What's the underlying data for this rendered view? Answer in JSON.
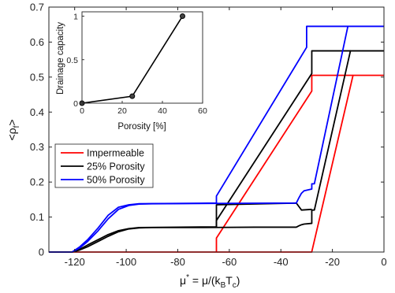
{
  "chart_data": [
    {
      "type": "line",
      "xlabel": "μ* = μ/(k_BT_c)",
      "ylabel": "<ρ_f>",
      "xlim": [
        -130,
        0
      ],
      "ylim": [
        0,
        0.7
      ],
      "x_ticks": [
        "-120",
        "-100",
        "-80",
        "-60",
        "-40",
        "-20",
        "0"
      ],
      "y_ticks": [
        "0",
        "0.1",
        "0.2",
        "0.3",
        "0.4",
        "0.5",
        "0.6",
        "0.7"
      ],
      "x_tick_values": [
        -120,
        -100,
        -80,
        -60,
        -40,
        -20,
        0
      ],
      "y_tick_values": [
        0,
        0.1,
        0.2,
        0.3,
        0.4,
        0.5,
        0.6,
        0.7
      ],
      "legend_position": "lower-left",
      "series": [
        {
          "name": "Impermeable",
          "color": "#ff0000",
          "branches": [
            [
              [
                -130,
                0
              ],
              [
                -28,
                0
              ],
              [
                -28,
                0.001
              ],
              [
                -12,
                0.505
              ],
              [
                0,
                0.505
              ]
            ],
            [
              [
                -65,
                0
              ],
              [
                -65,
                0.04
              ],
              [
                -28,
                0.46
              ],
              [
                -28,
                0.505
              ],
              [
                -12,
                0.505
              ]
            ]
          ]
        },
        {
          "name": "25% Porosity",
          "color": "#000000",
          "branches": [
            [
              [
                -130,
                0
              ],
              [
                -121,
                0
              ],
              [
                -118,
                0.006
              ],
              [
                -115,
                0.015
              ],
              [
                -111,
                0.03
              ],
              [
                -107,
                0.045
              ],
              [
                -103,
                0.058
              ],
              [
                -99,
                0.066
              ],
              [
                -95,
                0.069
              ],
              [
                -90,
                0.07
              ],
              [
                -80,
                0.07
              ],
              [
                -70,
                0.07
              ],
              [
                -50,
                0.071
              ],
              [
                -34,
                0.071
              ],
              [
                -33,
                0.075
              ],
              [
                -32,
                0.078
              ],
              [
                -31,
                0.08
              ],
              [
                -28,
                0.082
              ],
              [
                -28,
                0.12
              ],
              [
                -27,
                0.12
              ],
              [
                -13,
                0.575
              ],
              [
                0,
                0.575
              ]
            ],
            [
              [
                -121,
                0
              ],
              [
                -118,
                0.008
              ],
              [
                -115,
                0.02
              ],
              [
                -111,
                0.035
              ],
              [
                -107,
                0.05
              ],
              [
                -103,
                0.061
              ],
              [
                -99,
                0.067
              ],
              [
                -95,
                0.07
              ],
              [
                -65,
                0.072
              ],
              [
                -65,
                0.09
              ],
              [
                -28,
                0.51
              ],
              [
                -28,
                0.575
              ],
              [
                -13,
                0.575
              ]
            ],
            [
              [
                -65,
                0.072
              ],
              [
                -65,
                0.135
              ],
              [
                -34,
                0.14
              ],
              [
                -33,
                0.13
              ],
              [
                -32,
                0.12
              ],
              [
                -28,
                0.122
              ]
            ]
          ]
        },
        {
          "name": "50% Porosity",
          "color": "#0000ff",
          "branches": [
            [
              [
                -130,
                0
              ],
              [
                -121,
                0
              ],
              [
                -118,
                0.012
              ],
              [
                -115,
                0.03
              ],
              [
                -111,
                0.06
              ],
              [
                -107,
                0.095
              ],
              [
                -103,
                0.122
              ],
              [
                -99,
                0.133
              ],
              [
                -95,
                0.137
              ],
              [
                -90,
                0.138
              ],
              [
                -65,
                0.139
              ],
              [
                -34,
                0.14
              ],
              [
                -33,
                0.155
              ],
              [
                -32,
                0.168
              ],
              [
                -31,
                0.175
              ],
              [
                -28,
                0.18
              ],
              [
                -28,
                0.195
              ],
              [
                -27,
                0.195
              ],
              [
                -14,
                0.645
              ],
              [
                0,
                0.645
              ]
            ],
            [
              [
                -121,
                0
              ],
              [
                -118,
                0.015
              ],
              [
                -115,
                0.035
              ],
              [
                -111,
                0.068
              ],
              [
                -107,
                0.105
              ],
              [
                -103,
                0.128
              ],
              [
                -99,
                0.135
              ],
              [
                -95,
                0.138
              ],
              [
                -65,
                0.14
              ],
              [
                -65,
                0.16
              ],
              [
                -30,
                0.585
              ],
              [
                -30,
                0.645
              ],
              [
                -14,
                0.645
              ]
            ]
          ]
        }
      ]
    },
    {
      "type": "line",
      "xlabel": "Porosity [%]",
      "ylabel": "Drainage capacity",
      "xlim": [
        0,
        60
      ],
      "ylim": [
        0,
        1.05
      ],
      "x_ticks": [
        "0",
        "20",
        "40",
        "60"
      ],
      "y_ticks": [
        "0",
        "0.5",
        "1"
      ],
      "x_tick_values": [
        0,
        20,
        40,
        60
      ],
      "y_tick_values": [
        0,
        0.5,
        1
      ],
      "series": [
        {
          "color": "#000000",
          "x": [
            0,
            25,
            50
          ],
          "y": [
            0,
            0.08,
            1
          ]
        }
      ]
    }
  ]
}
